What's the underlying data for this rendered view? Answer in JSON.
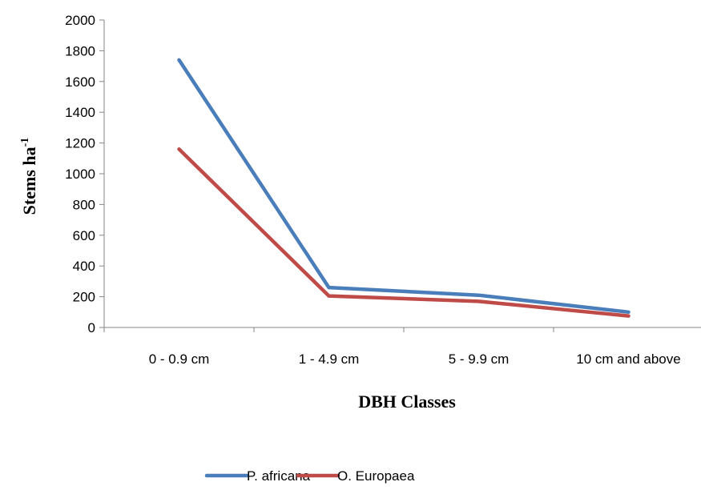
{
  "chart_data": {
    "type": "line",
    "categories": [
      "0 - 0.9 cm",
      "1 - 4.9 cm",
      "5 - 9.9 cm",
      "10 cm and above"
    ],
    "series": [
      {
        "name": "P. africana",
        "color": "#4A7EBB",
        "values": [
          1740,
          260,
          210,
          100
        ]
      },
      {
        "name": "O. Europaea",
        "color": "#BE4B48",
        "values": [
          1160,
          205,
          170,
          75
        ]
      }
    ],
    "xlabel": "DBH Classes",
    "ylabel_main": "Stems ha",
    "ylabel_sup": "-1",
    "ylim": [
      0,
      2000
    ],
    "yticks": [
      0,
      200,
      400,
      600,
      800,
      1000,
      1200,
      1400,
      1600,
      1800,
      2000
    ],
    "grid": false,
    "legend_position": "bottom"
  }
}
